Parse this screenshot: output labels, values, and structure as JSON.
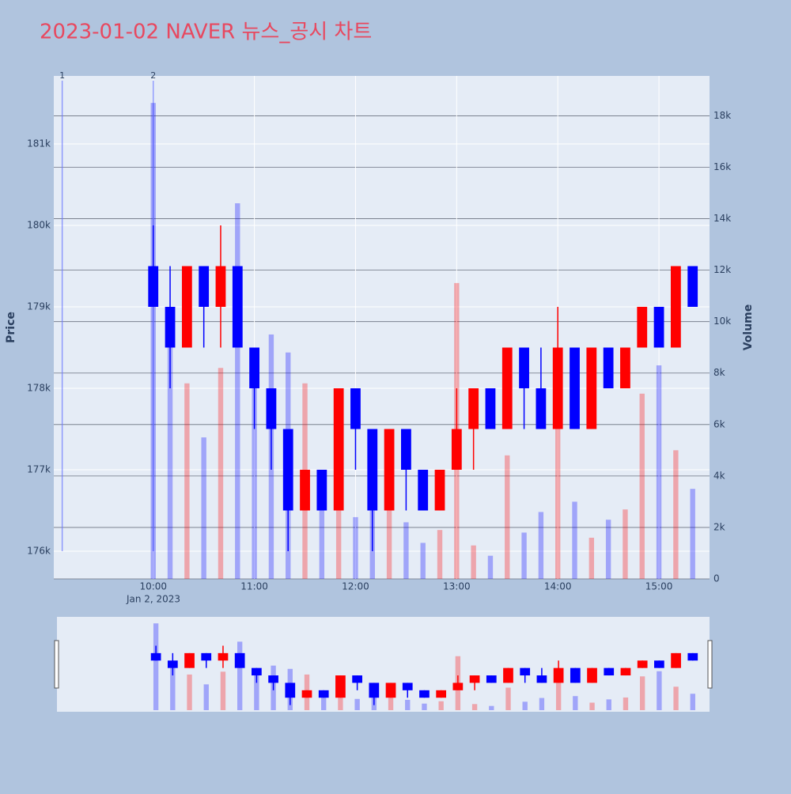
{
  "chart_data": {
    "type": "candlestick",
    "title": "2023-01-02 NAVER 뉴스_공시 차트",
    "y_label": "Price",
    "y2_label": "Volume",
    "x_date_label": "Jan 2, 2023",
    "increasing_color": "#ff0000",
    "decreasing_color": "#0000ff",
    "grid": true,
    "x": [
      "2023-01-02 10:00",
      "2023-01-02 10:10",
      "2023-01-02 10:20",
      "2023-01-02 10:30",
      "2023-01-02 10:40",
      "2023-01-02 10:50",
      "2023-01-02 11:00",
      "2023-01-02 11:10",
      "2023-01-02 11:20",
      "2023-01-02 11:30",
      "2023-01-02 11:40",
      "2023-01-02 11:50",
      "2023-01-02 12:00",
      "2023-01-02 12:10",
      "2023-01-02 12:20",
      "2023-01-02 12:30",
      "2023-01-02 12:40",
      "2023-01-02 12:50",
      "2023-01-02 13:00",
      "2023-01-02 13:10",
      "2023-01-02 13:20",
      "2023-01-02 13:30",
      "2023-01-02 13:40",
      "2023-01-02 13:50",
      "2023-01-02 14:00",
      "2023-01-02 14:10",
      "2023-01-02 14:20",
      "2023-01-02 14:30",
      "2023-01-02 14:40",
      "2023-01-02 14:50",
      "2023-01-02 15:00",
      "2023-01-02 15:10",
      "2023-01-02 15:20"
    ],
    "open": [
      179500,
      179000,
      178500,
      179500,
      179000,
      179500,
      178500,
      178000,
      177500,
      176500,
      177000,
      176500,
      178000,
      177500,
      176500,
      177500,
      177000,
      176500,
      177000,
      177500,
      178000,
      177500,
      178500,
      178000,
      177500,
      178500,
      177500,
      178500,
      178000,
      178500,
      179000,
      178500,
      179500
    ],
    "high": [
      180000,
      179500,
      179500,
      179500,
      180000,
      179500,
      178500,
      178000,
      177500,
      177000,
      177000,
      178000,
      178000,
      177500,
      177500,
      177500,
      177000,
      177000,
      178000,
      178000,
      178000,
      178500,
      178500,
      178500,
      179000,
      178500,
      178500,
      178500,
      178500,
      179000,
      179000,
      179500,
      179500
    ],
    "low": [
      179000,
      178000,
      178500,
      178500,
      178500,
      178500,
      177500,
      177000,
      176000,
      176500,
      176500,
      176500,
      177000,
      176000,
      176500,
      176500,
      176500,
      176500,
      177000,
      177000,
      177500,
      177500,
      177500,
      177500,
      177500,
      177500,
      177500,
      178000,
      178000,
      178500,
      178500,
      178500,
      179000
    ],
    "close": [
      179000,
      178500,
      179500,
      179000,
      179500,
      178500,
      178000,
      177500,
      176500,
      177000,
      176500,
      178000,
      177500,
      176500,
      177500,
      177000,
      176500,
      177000,
      177500,
      178000,
      177500,
      178500,
      178000,
      177500,
      178500,
      177500,
      178500,
      178000,
      178500,
      179000,
      178500,
      179500,
      179000
    ],
    "volume": [
      18500,
      9700,
      7600,
      5500,
      8200,
      14600,
      7800,
      9500,
      8800,
      7600,
      3800,
      5200,
      2400,
      3000,
      5600,
      2200,
      1400,
      1900,
      11500,
      1300,
      900,
      4800,
      1800,
      2600,
      8200,
      3000,
      1600,
      2300,
      2700,
      7200,
      8300,
      5000,
      3500
    ],
    "xlim": [
      "2023-01-02 09:01",
      "2023-01-02 15:30"
    ],
    "xticks": [
      {
        "value": "2023-01-02 10:00",
        "label": "10:00"
      },
      {
        "value": "2023-01-02 11:00",
        "label": "11:00"
      },
      {
        "value": "2023-01-02 12:00",
        "label": "12:00"
      },
      {
        "value": "2023-01-02 13:00",
        "label": "13:00"
      },
      {
        "value": "2023-01-02 14:00",
        "label": "14:00"
      },
      {
        "value": "2023-01-02 15:00",
        "label": "15:00"
      }
    ],
    "ylim": [
      175660,
      181835
    ],
    "yticks": [
      {
        "value": 176000,
        "label": "176k"
      },
      {
        "value": 177000,
        "label": "177k"
      },
      {
        "value": 178000,
        "label": "178k"
      },
      {
        "value": 179000,
        "label": "179k"
      },
      {
        "value": 180000,
        "label": "180k"
      },
      {
        "value": 181000,
        "label": "181k"
      }
    ],
    "y2lim": [
      0,
      19550
    ],
    "y2ticks": [
      0,
      {
        "value": 2000,
        "label": "2k"
      },
      {
        "value": 4000,
        "label": "4k"
      },
      {
        "value": 6000,
        "label": "6k"
      },
      {
        "value": 8000,
        "label": "8k"
      },
      {
        "value": 10000,
        "label": "10k"
      },
      {
        "value": 12000,
        "label": "12k"
      },
      {
        "value": 14000,
        "label": "14k"
      },
      {
        "value": 16000,
        "label": "16k"
      },
      {
        "value": 18000,
        "label": "18k"
      }
    ],
    "annotations": [
      {
        "x": "2023-01-02 09:06",
        "text": "1"
      },
      {
        "x": "2023-01-02 10:00",
        "text": "2"
      }
    ]
  }
}
